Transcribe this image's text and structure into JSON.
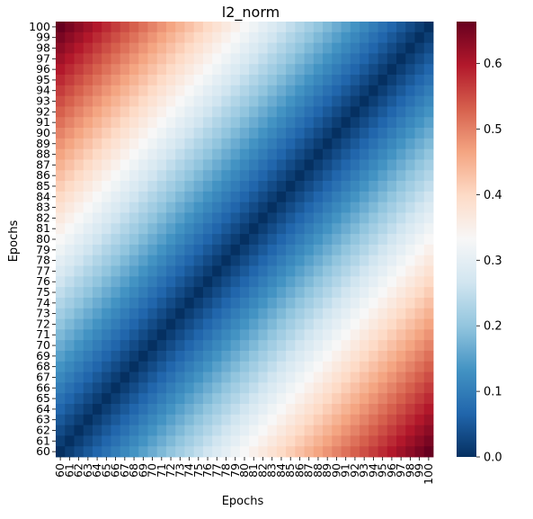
{
  "chart_data": {
    "type": "heatmap",
    "title": "l2_norm",
    "xlabel": "Epochs",
    "ylabel": "Epochs",
    "x_categories": [
      "60",
      "61",
      "62",
      "63",
      "64",
      "65",
      "66",
      "67",
      "68",
      "69",
      "70",
      "71",
      "72",
      "73",
      "74",
      "75",
      "76",
      "77",
      "78",
      "79",
      "80",
      "81",
      "82",
      "83",
      "84",
      "85",
      "86",
      "87",
      "88",
      "89",
      "90",
      "91",
      "92",
      "93",
      "94",
      "95",
      "96",
      "97",
      "98",
      "99",
      "100"
    ],
    "y_categories": [
      "100",
      "99",
      "98",
      "97",
      "96",
      "95",
      "94",
      "93",
      "92",
      "91",
      "90",
      "89",
      "88",
      "87",
      "86",
      "85",
      "84",
      "83",
      "82",
      "81",
      "80",
      "79",
      "78",
      "77",
      "76",
      "75",
      "74",
      "73",
      "72",
      "71",
      "70",
      "69",
      "68",
      "67",
      "66",
      "65",
      "64",
      "63",
      "62",
      "61",
      "60"
    ],
    "values_rule": "value(x, y) = 0.0166 * |x - y|",
    "zlim": [
      0,
      0.664
    ],
    "colormap": "RdBu_r",
    "colorbar": {
      "ticks": [
        "0.0",
        "0.1",
        "0.2",
        "0.3",
        "0.4",
        "0.5",
        "0.6"
      ],
      "tick_values": [
        0.0,
        0.1,
        0.2,
        0.3,
        0.4,
        0.5,
        0.6
      ],
      "range": [
        0,
        0.664
      ]
    },
    "grid": false,
    "legend": "colorbar-right"
  }
}
